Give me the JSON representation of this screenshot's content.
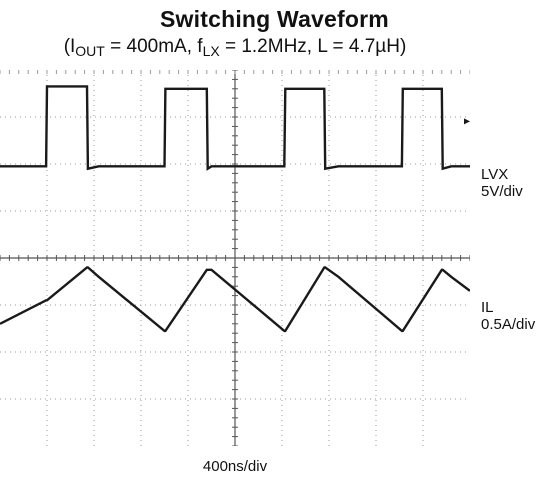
{
  "title": {
    "main": "Switching Waveform",
    "open": "(I",
    "iout_sub": "OUT",
    "iout_val": " = 400mA, f",
    "flx_sub": "LX",
    "rest": " = 1.2MHz, L = 4.7µH)"
  },
  "channels": [
    {
      "name": "LVX",
      "scale": "5V/div"
    },
    {
      "name": "IL",
      "scale": "0.5A/div"
    }
  ],
  "timebase": "400ns/div",
  "colors": {
    "trace": "#1a1a1a",
    "grid": "#9a9a9a",
    "background": "#ffffff"
  },
  "chart_data": {
    "type": "line",
    "grid": true,
    "grid_divisions": {
      "x": 10,
      "y": 8
    },
    "x_unit": "div",
    "xlim": [
      0,
      10
    ],
    "ylim": [
      -4,
      4
    ],
    "series": [
      {
        "name": "LVX",
        "x": [
          0,
          0.98,
          1.0,
          1.85,
          1.87,
          2.1,
          3.5,
          3.52,
          4.4,
          4.42,
          4.5,
          6.05,
          6.07,
          6.9,
          6.92,
          7.2,
          8.55,
          8.57,
          9.4,
          9.42,
          9.6,
          10
        ],
        "y": [
          1.95,
          1.95,
          3.65,
          3.65,
          1.9,
          1.95,
          1.95,
          3.6,
          3.6,
          1.9,
          1.95,
          1.95,
          3.6,
          3.6,
          1.9,
          1.95,
          1.95,
          3.6,
          3.6,
          1.9,
          1.95,
          1.95
        ]
      },
      {
        "name": "IL",
        "x": [
          0,
          0.98,
          1.0,
          1.85,
          1.87,
          2.1,
          3.5,
          3.52,
          4.4,
          4.42,
          4.5,
          6.05,
          6.07,
          6.9,
          6.92,
          7.2,
          8.55,
          8.57,
          9.4,
          9.42,
          9.6,
          10
        ],
        "y": [
          -1.4,
          -0.9,
          -0.9,
          -0.2,
          -0.2,
          -0.4,
          -1.55,
          -1.55,
          -0.25,
          -0.25,
          -0.25,
          -1.55,
          -1.55,
          -0.2,
          -0.2,
          -0.4,
          -1.55,
          -1.55,
          -0.25,
          -0.25,
          -0.4,
          -0.7
        ]
      }
    ]
  }
}
